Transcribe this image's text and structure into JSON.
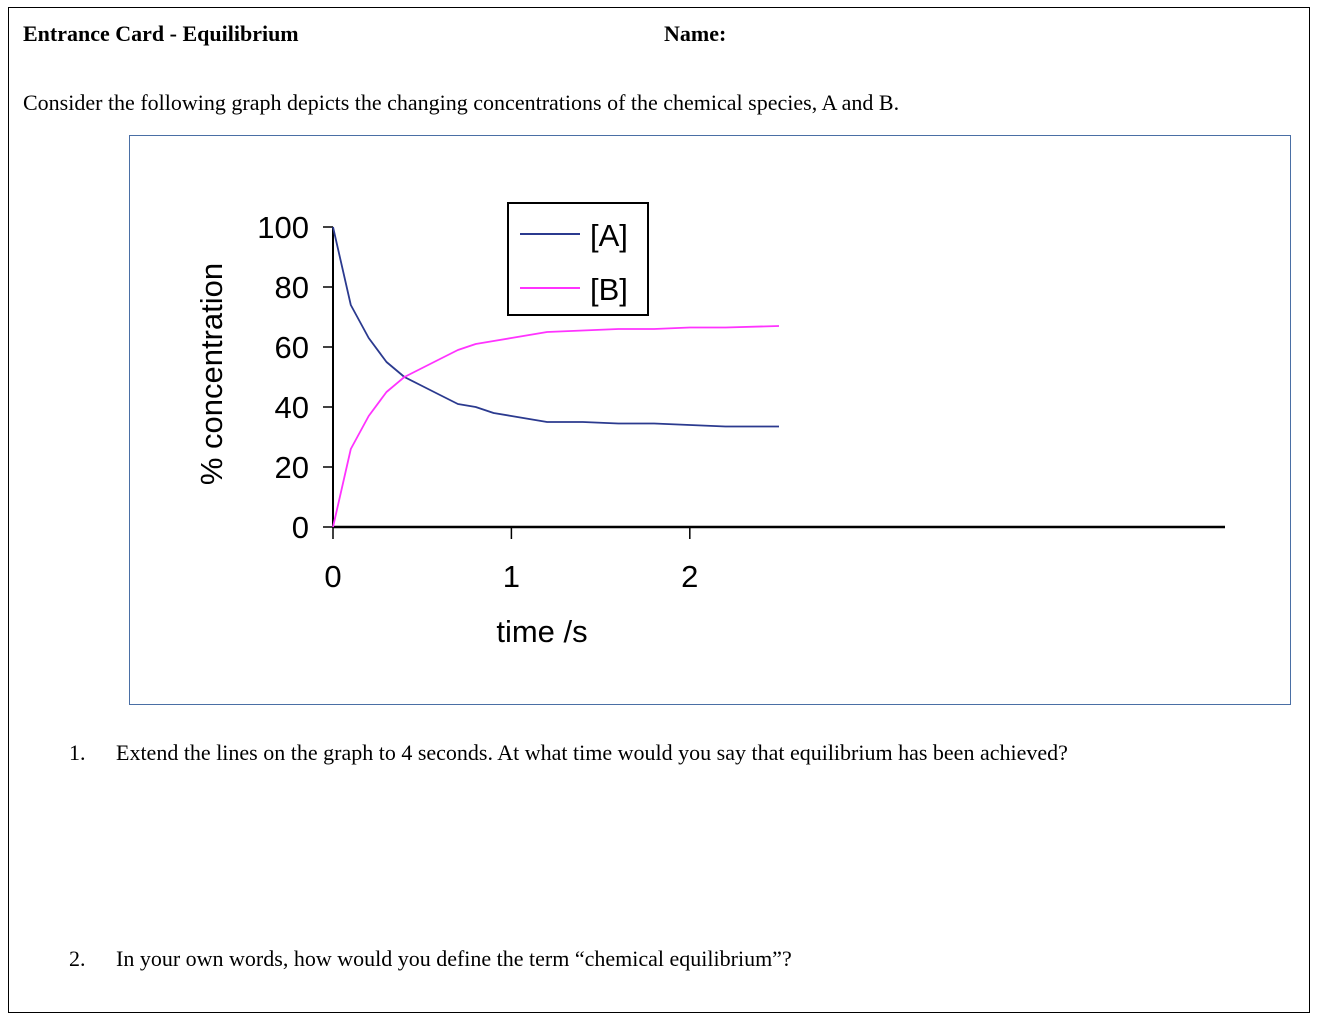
{
  "header": {
    "title": "Entrance Card - Equilibrium",
    "name_label": "Name:"
  },
  "intro": "Consider the following graph depicts the changing concentrations of the chemical species, A and B.",
  "chart_data": {
    "type": "line",
    "xlabel": "time /s",
    "ylabel": "% concentration",
    "xlim": [
      0,
      5
    ],
    "ylim": [
      0,
      100
    ],
    "xticks": [
      "0",
      "1",
      "2"
    ],
    "yticks": [
      "0",
      "20",
      "40",
      "60",
      "80",
      "100"
    ],
    "legend_position": "top-center",
    "series": [
      {
        "name": "[A]",
        "color": "#2b3a8f",
        "x": [
          0,
          0.1,
          0.2,
          0.3,
          0.4,
          0.5,
          0.6,
          0.7,
          0.8,
          0.9,
          1.0,
          1.1,
          1.2,
          1.4,
          1.6,
          1.8,
          2.0,
          2.2,
          2.5
        ],
        "y": [
          100,
          74,
          63,
          55,
          50,
          47,
          44,
          41,
          40,
          38,
          37,
          36,
          35,
          35,
          34.5,
          34.5,
          34,
          33.5,
          33.5
        ]
      },
      {
        "name": "[B]",
        "color": "#ff33ff",
        "x": [
          0,
          0.1,
          0.2,
          0.3,
          0.4,
          0.5,
          0.6,
          0.7,
          0.8,
          0.9,
          1.0,
          1.1,
          1.2,
          1.4,
          1.6,
          1.8,
          2.0,
          2.2,
          2.5
        ],
        "y": [
          0,
          26,
          37,
          45,
          50,
          53,
          56,
          59,
          61,
          62,
          63,
          64,
          65,
          65.5,
          66,
          66,
          66.5,
          66.5,
          67
        ]
      }
    ]
  },
  "questions": [
    {
      "number": "1.",
      "text": "Extend the lines on the graph to 4 seconds. At what time would you say that equilibrium has been achieved?"
    },
    {
      "number": "2.",
      "text": "In your own words, how would you define the term “chemical equilibrium”?"
    }
  ]
}
